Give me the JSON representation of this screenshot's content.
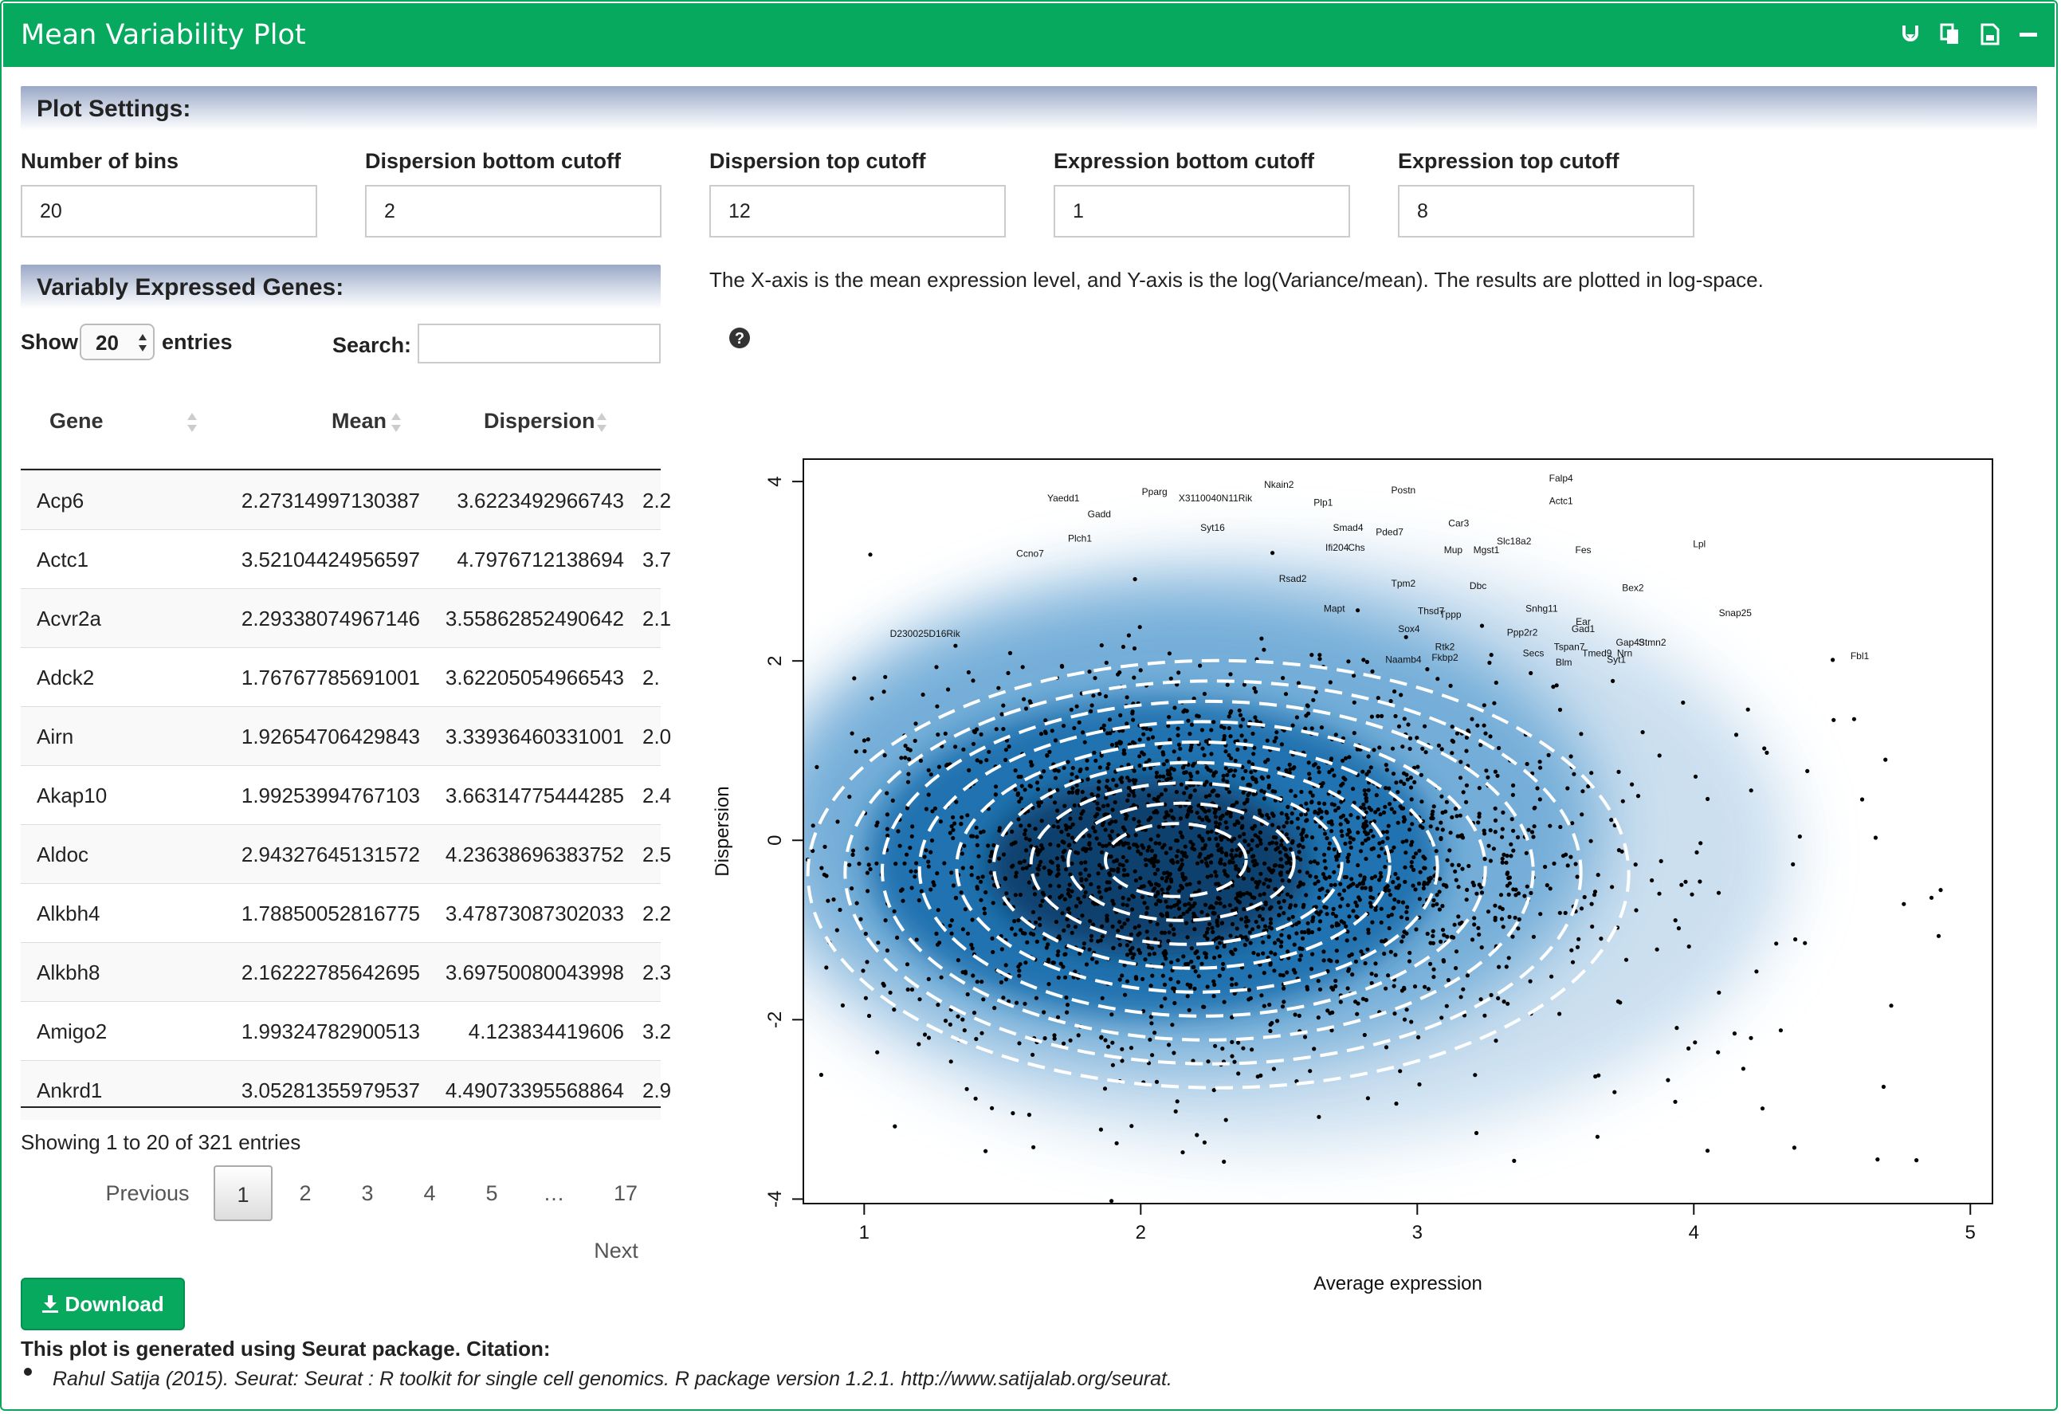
{
  "panel": {
    "title": "Mean Variability Plot",
    "header_icons": [
      "download-icon",
      "copy-icon",
      "save-icon",
      "minimize-icon"
    ]
  },
  "settings": {
    "heading": "Plot Settings:",
    "fields": [
      {
        "label": "Number of bins",
        "value": "20"
      },
      {
        "label": "Dispersion bottom cutoff",
        "value": "2"
      },
      {
        "label": "Dispersion top cutoff",
        "value": "12"
      },
      {
        "label": "Expression bottom cutoff",
        "value": "1"
      },
      {
        "label": "Expression top cutoff",
        "value": "8"
      }
    ]
  },
  "genes": {
    "heading": "Variably Expressed Genes:",
    "show_label": "Show",
    "page_size": "20",
    "entries_label": "entries",
    "search_label": "Search:",
    "search_value": "",
    "columns": [
      "Gene",
      "Mean",
      "Dispersion"
    ],
    "rows": [
      {
        "gene": "Acp6",
        "mean": "2.27314997130387",
        "dispersion": "3.6223492966743",
        "extra": "2.2"
      },
      {
        "gene": "Actc1",
        "mean": "3.52104424956597",
        "dispersion": "4.7976712138694",
        "extra": "3.7"
      },
      {
        "gene": "Acvr2a",
        "mean": "2.29338074967146",
        "dispersion": "3.55862852490642",
        "extra": "2.1"
      },
      {
        "gene": "Adck2",
        "mean": "1.76767785691001",
        "dispersion": "3.62205054966543",
        "extra": "2."
      },
      {
        "gene": "Airn",
        "mean": "1.92654706429843",
        "dispersion": "3.33936460331001",
        "extra": "2.0"
      },
      {
        "gene": "Akap10",
        "mean": "1.99253994767103",
        "dispersion": "3.66314775444285",
        "extra": "2.4"
      },
      {
        "gene": "Aldoc",
        "mean": "2.94327645131572",
        "dispersion": "4.23638696383752",
        "extra": "2.5"
      },
      {
        "gene": "Alkbh4",
        "mean": "1.78850052816775",
        "dispersion": "3.47873087302033",
        "extra": "2.2"
      },
      {
        "gene": "Alkbh8",
        "mean": "2.16222785642695",
        "dispersion": "3.69750080043998",
        "extra": "2.3"
      },
      {
        "gene": "Amigo2",
        "mean": "1.99324782900513",
        "dispersion": "4.123834419606",
        "extra": "3.2"
      },
      {
        "gene": "Ankrd1",
        "mean": "3.05281355979537",
        "dispersion": "4.49073395568864",
        "extra": "2.9"
      }
    ],
    "info": "Showing 1 to 20 of 321 entries",
    "pagination": {
      "previous": "Previous",
      "pages": [
        "1",
        "2",
        "3",
        "4",
        "5",
        "…",
        "17"
      ],
      "current": "1",
      "next": "Next"
    }
  },
  "description": "The X-axis is the mean expression level, and Y-axis is the log(Variance/mean). The results are plotted in log-space.",
  "help_icon": "question-circle-icon",
  "download": {
    "icon": "download-icon",
    "label": "Download"
  },
  "citation": {
    "heading": "This plot is generated using Seurat package. Citation:",
    "items": [
      "Rahul Satija (2015). Seurat: Seurat : R toolkit for single cell genomics. R package version 1.2.1. http://www.satijalab.org/seurat."
    ]
  },
  "chart_data": {
    "type": "scatter",
    "xlabel": "Average expression",
    "ylabel": "Dispersion",
    "xlim": [
      0.78,
      5.08
    ],
    "ylim": [
      -4.05,
      4.25
    ],
    "xticks": [
      "1",
      "2",
      "3",
      "4",
      "5"
    ],
    "yticks": [
      "-4",
      "-2",
      "0",
      "2",
      "4"
    ],
    "density_center": [
      2.05,
      -0.2
    ],
    "colors": {
      "density": "#1f6fae",
      "points": "#000000",
      "contours": "#ffffff"
    },
    "gene_labels": [
      {
        "text": "Falp4",
        "x": 3.52,
        "y": 4.0
      },
      {
        "text": "Actc1",
        "x": 3.52,
        "y": 3.75
      },
      {
        "text": "Nkain2",
        "x": 2.5,
        "y": 3.93
      },
      {
        "text": "Postn",
        "x": 2.95,
        "y": 3.87
      },
      {
        "text": "Pparg",
        "x": 2.05,
        "y": 3.85
      },
      {
        "text": "X3110040N11Rik",
        "x": 2.27,
        "y": 3.78
      },
      {
        "text": "Plp1",
        "x": 2.66,
        "y": 3.73
      },
      {
        "text": "Yaedd1",
        "x": 1.72,
        "y": 3.78
      },
      {
        "text": "Gadd",
        "x": 1.85,
        "y": 3.6
      },
      {
        "text": "Car3",
        "x": 3.15,
        "y": 3.5
      },
      {
        "text": "Smad4",
        "x": 2.75,
        "y": 3.45
      },
      {
        "text": "Pded7",
        "x": 2.9,
        "y": 3.4
      },
      {
        "text": "Syt16",
        "x": 2.26,
        "y": 3.45
      },
      {
        "text": "Slc18a2",
        "x": 3.35,
        "y": 3.3
      },
      {
        "text": "Lpl",
        "x": 4.02,
        "y": 3.27
      },
      {
        "text": "Fes",
        "x": 3.6,
        "y": 3.2
      },
      {
        "text": "Plch1",
        "x": 1.78,
        "y": 3.33
      },
      {
        "text": "Ccno7",
        "x": 1.6,
        "y": 3.16
      },
      {
        "text": "Mup",
        "x": 3.13,
        "y": 3.2
      },
      {
        "text": "Mgst1",
        "x": 3.25,
        "y": 3.2
      },
      {
        "text": "Ifi204",
        "x": 2.71,
        "y": 3.23
      },
      {
        "text": "Chs",
        "x": 2.78,
        "y": 3.23
      },
      {
        "text": "Dbc",
        "x": 3.22,
        "y": 2.8
      },
      {
        "text": "Bex2",
        "x": 3.78,
        "y": 2.78
      },
      {
        "text": "Snhg11",
        "x": 3.45,
        "y": 2.55
      },
      {
        "text": "Snap25",
        "x": 4.15,
        "y": 2.5
      },
      {
        "text": "Ppp2r2",
        "x": 3.38,
        "y": 2.28
      },
      {
        "text": "Ear",
        "x": 3.6,
        "y": 2.4
      },
      {
        "text": "Gad1",
        "x": 3.6,
        "y": 2.32
      },
      {
        "text": "Fbl1",
        "x": 4.6,
        "y": 2.02
      },
      {
        "text": "Tspan7",
        "x": 3.55,
        "y": 2.12
      },
      {
        "text": "Gap43",
        "x": 3.77,
        "y": 2.17
      },
      {
        "text": "Stmn2",
        "x": 3.85,
        "y": 2.17
      },
      {
        "text": "Nrn",
        "x": 3.75,
        "y": 2.05
      },
      {
        "text": "Tmed9",
        "x": 3.65,
        "y": 2.05
      },
      {
        "text": "Syt1",
        "x": 3.72,
        "y": 1.98
      },
      {
        "text": "Secs",
        "x": 3.42,
        "y": 2.05
      },
      {
        "text": "Blm",
        "x": 3.53,
        "y": 1.95
      },
      {
        "text": "Thsd7",
        "x": 3.05,
        "y": 2.52
      },
      {
        "text": "Tppp",
        "x": 3.12,
        "y": 2.48
      },
      {
        "text": "Rsad2",
        "x": 2.55,
        "y": 2.88
      },
      {
        "text": "Tpm2",
        "x": 2.95,
        "y": 2.83
      },
      {
        "text": "D230025D16Rik",
        "x": 1.22,
        "y": 2.27
      },
      {
        "text": "Mapt",
        "x": 2.7,
        "y": 2.55
      },
      {
        "text": "Sox4",
        "x": 2.97,
        "y": 2.32
      },
      {
        "text": "Fkbp2",
        "x": 3.1,
        "y": 2.0
      },
      {
        "text": "Naamb4",
        "x": 2.95,
        "y": 1.98
      },
      {
        "text": "Rtk2",
        "x": 3.1,
        "y": 2.12
      }
    ]
  }
}
